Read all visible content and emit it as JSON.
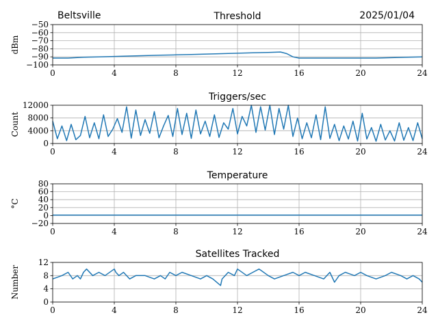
{
  "header": {
    "location": "Beltsville",
    "date": "2025/01/04"
  },
  "colors": {
    "series": "#1f77b4",
    "grid": "#b0b0b0"
  },
  "chart_data": [
    {
      "type": "line",
      "title": "Threshold",
      "ylabel": "dBm",
      "xlim": [
        0,
        24
      ],
      "ylim": [
        -100,
        -50
      ],
      "xticks": [
        "0",
        "4",
        "8",
        "12",
        "16",
        "20",
        "24"
      ],
      "yticks": [
        "−50",
        "−60",
        "−70",
        "−80",
        "−90",
        "−100"
      ],
      "ytick_values": [
        -50,
        -60,
        -70,
        -80,
        -90,
        -100
      ],
      "grid": true,
      "series": [
        {
          "x": [
            0,
            1,
            2,
            3,
            4,
            5,
            6,
            7,
            8,
            9,
            10,
            11,
            12,
            13,
            14,
            14.8,
            15.2,
            15.6,
            16,
            17,
            18,
            19,
            20,
            21,
            22,
            23,
            24
          ],
          "y": [
            -91.5,
            -91.5,
            -90.5,
            -90,
            -89.5,
            -89,
            -88.5,
            -88,
            -87.5,
            -87,
            -86.5,
            -86,
            -85.5,
            -85,
            -84.5,
            -84,
            -86,
            -90,
            -91.5,
            -91.5,
            -91.5,
            -91.5,
            -91.5,
            -91.5,
            -91,
            -90.5,
            -90
          ]
        }
      ]
    },
    {
      "type": "line",
      "title": "Triggers/sec",
      "ylabel": "Count",
      "xlim": [
        0,
        24
      ],
      "ylim": [
        0,
        12000
      ],
      "xticks": [
        "0",
        "4",
        "8",
        "12",
        "16",
        "20",
        "24"
      ],
      "yticks": [
        "0",
        "4000",
        "8000",
        "12000"
      ],
      "ytick_values": [
        0,
        4000,
        8000,
        12000
      ],
      "grid": true,
      "series": [
        {
          "x": [
            0,
            0.3,
            0.6,
            0.9,
            1.2,
            1.5,
            1.8,
            2.1,
            2.4,
            2.7,
            3,
            3.3,
            3.6,
            3.9,
            4.2,
            4.5,
            4.8,
            5.1,
            5.4,
            5.7,
            6,
            6.3,
            6.6,
            6.9,
            7.2,
            7.5,
            7.8,
            8.1,
            8.4,
            8.7,
            9,
            9.3,
            9.6,
            9.9,
            10.2,
            10.5,
            10.8,
            11.1,
            11.4,
            11.7,
            12,
            12.3,
            12.6,
            12.9,
            13.2,
            13.5,
            13.8,
            14.1,
            14.4,
            14.7,
            15,
            15.3,
            15.6,
            15.9,
            16.2,
            16.5,
            16.8,
            17.1,
            17.4,
            17.7,
            18,
            18.3,
            18.6,
            18.9,
            19.2,
            19.5,
            19.8,
            20.1,
            20.4,
            20.7,
            21,
            21.3,
            21.6,
            21.9,
            22.2,
            22.5,
            22.8,
            23.1,
            23.4,
            23.7,
            24
          ],
          "y": [
            7000,
            1500,
            5500,
            900,
            6000,
            1200,
            2500,
            8500,
            1800,
            6500,
            1500,
            9000,
            2200,
            4500,
            7800,
            3500,
            11500,
            1700,
            10500,
            2500,
            7500,
            3200,
            10000,
            1800,
            5500,
            8800,
            2200,
            11000,
            2800,
            9500,
            1600,
            10500,
            3000,
            7000,
            2200,
            9000,
            1900,
            6500,
            4500,
            11000,
            3000,
            8500,
            5500,
            12000,
            3500,
            11500,
            4200,
            12000,
            2800,
            11000,
            4500,
            12000,
            2200,
            8000,
            1500,
            6500,
            1800,
            9000,
            1200,
            11500,
            1600,
            6000,
            900,
            5500,
            1400,
            7000,
            800,
            9500,
            1400,
            5000,
            700,
            6000,
            1100,
            4000,
            800,
            6500,
            1000,
            5000,
            900,
            6500,
            1500
          ]
        }
      ]
    },
    {
      "type": "line",
      "title": "Temperature",
      "ylabel": "°C",
      "xlim": [
        0,
        24
      ],
      "ylim": [
        -20,
        80
      ],
      "xticks": [
        "0",
        "4",
        "8",
        "12",
        "16",
        "20",
        "24"
      ],
      "yticks": [
        "−20",
        "0",
        "20",
        "40",
        "60",
        "80"
      ],
      "ytick_values": [
        -20,
        0,
        20,
        40,
        60,
        80
      ],
      "grid": true,
      "series": [
        {
          "x": [
            0,
            24
          ],
          "y": [
            1,
            1
          ]
        }
      ]
    },
    {
      "type": "line",
      "title": "Satellites Tracked",
      "ylabel": "Number",
      "xlim": [
        0,
        24
      ],
      "ylim": [
        0,
        12
      ],
      "xticks": [
        "0",
        "4",
        "8",
        "12",
        "16",
        "20",
        "24"
      ],
      "yticks": [
        "0",
        "4",
        "8",
        "12"
      ],
      "ytick_values": [
        0,
        4,
        8,
        12
      ],
      "grid": true,
      "series": [
        {
          "x": [
            0,
            0.6,
            1,
            1.3,
            1.6,
            1.8,
            2,
            2.2,
            2.6,
            3,
            3.4,
            4,
            4.1,
            4.3,
            4.6,
            5,
            5.4,
            6,
            6.6,
            7,
            7.3,
            7.6,
            8,
            8.4,
            9,
            9.6,
            10,
            10.4,
            10.9,
            11,
            11.4,
            11.8,
            12,
            12.6,
            13,
            13.4,
            14,
            14.4,
            15,
            15.6,
            16,
            16.4,
            17,
            17.6,
            18,
            18.3,
            18.6,
            19,
            19.6,
            20,
            20.4,
            21,
            21.6,
            22,
            22.6,
            23,
            23.4,
            23.8,
            24
          ],
          "y": [
            7,
            8,
            9,
            7,
            8,
            7,
            9,
            10,
            8,
            9,
            8,
            10,
            9,
            8,
            9,
            7,
            8,
            8,
            7,
            8,
            7,
            9,
            8,
            9,
            8,
            7,
            8,
            7,
            5,
            7,
            9,
            8,
            10,
            8,
            9,
            10,
            8,
            7,
            8,
            9,
            8,
            9,
            8,
            7,
            9,
            6,
            8,
            9,
            8,
            9,
            8,
            7,
            8,
            9,
            8,
            7,
            8,
            7,
            6
          ]
        }
      ]
    }
  ]
}
